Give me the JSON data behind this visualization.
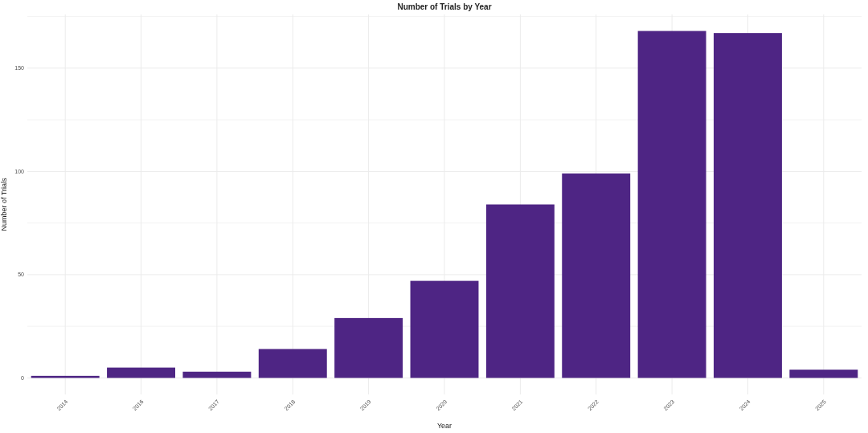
{
  "chart_data": {
    "type": "bar",
    "title": "Number of Trials by Year",
    "xlabel": "Year",
    "ylabel": "Number of Trials",
    "categories": [
      "2014",
      "2016",
      "2017",
      "2018",
      "2019",
      "2020",
      "2021",
      "2022",
      "2023",
      "2024",
      "2025"
    ],
    "values": [
      1,
      5,
      3,
      14,
      29,
      47,
      84,
      99,
      168,
      167,
      4
    ],
    "color": "#4e2584",
    "ylim": [
      -8,
      176
    ],
    "yticks": [
      0,
      {
        "value": 25,
        "label": null
      },
      50,
      {
        "value": 75,
        "label": null
      },
      100,
      {
        "value": 125,
        "label": null
      },
      150,
      {
        "value": 175,
        "label": null
      }
    ],
    "grid": true
  }
}
